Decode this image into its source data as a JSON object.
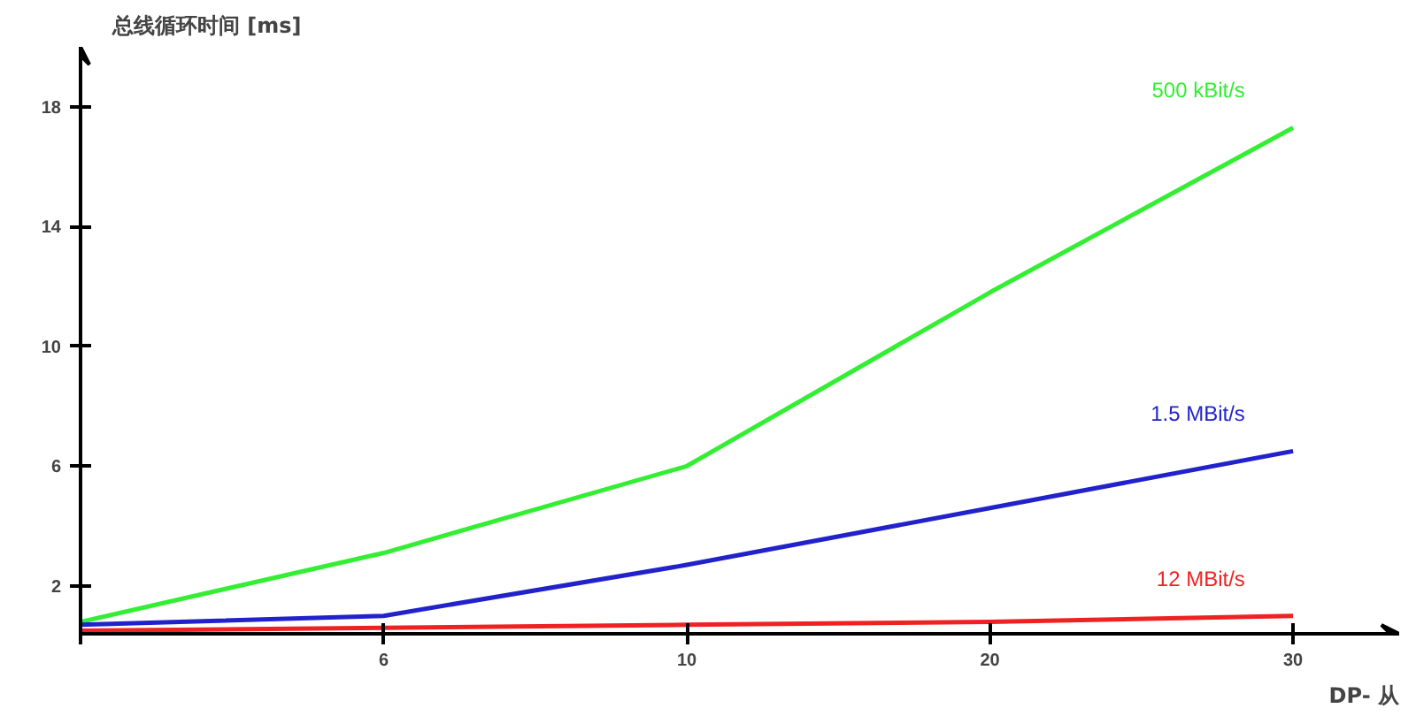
{
  "chart_data": {
    "type": "line",
    "ylabel": "总线循环时间 [ms]",
    "xlabel": "DP- 从",
    "categories": [
      null,
      "6",
      "10",
      "20",
      "30"
    ],
    "ylim": [
      0.4,
      20
    ],
    "yticks": [
      2,
      6,
      10,
      14,
      18
    ],
    "grid": false,
    "marker": "none",
    "line_style": "solid",
    "series": [
      {
        "name": "500 kBit/s",
        "color": "#33ee33",
        "values": [
          0.8,
          3.1,
          6.0,
          11.8,
          17.3
        ]
      },
      {
        "name": "1.5 MBit/s",
        "color": "#2222cc",
        "values": [
          0.7,
          1.0,
          2.7,
          4.6,
          6.5
        ]
      },
      {
        "name": "12 MBit/s",
        "color": "#ee2222",
        "values": [
          0.5,
          0.6,
          0.7,
          0.8,
          1.0
        ]
      }
    ]
  }
}
